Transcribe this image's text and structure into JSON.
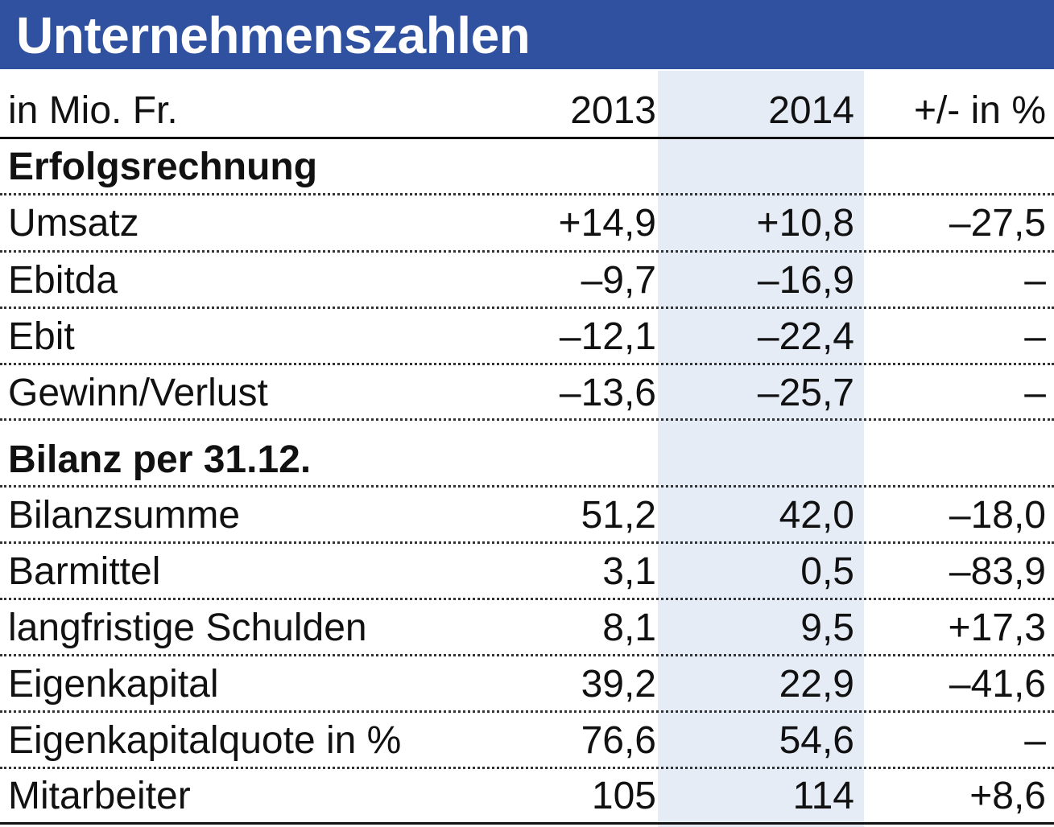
{
  "chart_data": {
    "type": "table",
    "title": "Unternehmenszahlen",
    "header": {
      "label": "in Mio. Fr.",
      "col_2013": "2013",
      "col_2014": "2014",
      "col_change": "+/- in %"
    },
    "sections": [
      {
        "name": "Erfolgsrechnung",
        "rows": [
          {
            "label": "Umsatz",
            "v2013": "+14,9",
            "v2014": "+10,8",
            "change": "–27,5"
          },
          {
            "label": "Ebitda",
            "v2013": "–9,7",
            "v2014": "–16,9",
            "change": "–"
          },
          {
            "label": "Ebit",
            "v2013": "–12,1",
            "v2014": "–22,4",
            "change": "–"
          },
          {
            "label": "Gewinn/Verlust",
            "v2013": "–13,6",
            "v2014": "–25,7",
            "change": "–"
          }
        ]
      },
      {
        "name": "Bilanz per 31.12.",
        "rows": [
          {
            "label": "Bilanzsumme",
            "v2013": "51,2",
            "v2014": "42,0",
            "change": "–18,0"
          },
          {
            "label": "Barmittel",
            "v2013": "3,1",
            "v2014": "0,5",
            "change": "–83,9"
          },
          {
            "label": "langfristige Schulden",
            "v2013": "8,1",
            "v2014": "9,5",
            "change": "+17,3"
          },
          {
            "label": "Eigenkapital",
            "v2013": "39,2",
            "v2014": "22,9",
            "change": "–41,6"
          },
          {
            "label": "Eigenkapitalquote in %",
            "v2013": "76,6",
            "v2014": "54,6",
            "change": "–"
          },
          {
            "label": "Mitarbeiter",
            "v2013": "105",
            "v2014": "114",
            "change": "+8,6"
          }
        ]
      }
    ],
    "colors": {
      "title_bar": "#3050a0",
      "title_text": "#ffffff",
      "highlight_column": "#e5ecf5",
      "text": "#111111"
    }
  }
}
